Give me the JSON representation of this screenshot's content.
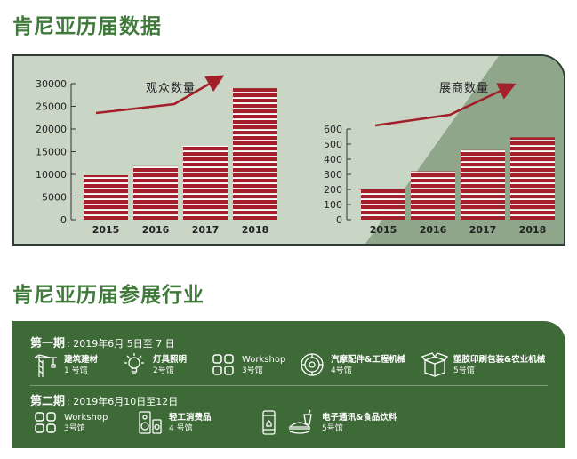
{
  "titles": {
    "history": "肯尼亚历届数据",
    "industries": "肯尼亚历届参展行业"
  },
  "chart_data": [
    {
      "type": "bar",
      "title": "观众数量",
      "categories": [
        "2015",
        "2016",
        "2017",
        "2018"
      ],
      "values": [
        9800,
        11800,
        16300,
        29000
      ],
      "yticks": [
        0,
        5000,
        10000,
        15000,
        20000,
        25000,
        30000
      ],
      "ylim": [
        0,
        30000
      ],
      "bar_color": "#a31f2a",
      "trend_arrow": true
    },
    {
      "type": "bar",
      "title": "展商数量",
      "categories": [
        "2015",
        "2016",
        "2017",
        "2018"
      ],
      "values": [
        205,
        320,
        460,
        545
      ],
      "yticks": [
        0,
        100,
        200,
        300,
        400,
        500,
        600
      ],
      "ylim": [
        0,
        600
      ],
      "bar_color": "#a31f2a",
      "trend_arrow": true
    }
  ],
  "phases": [
    {
      "label": "第一期",
      "date": ": 2019年6月 5日至 7 日",
      "items": [
        {
          "icon": "crane-icon",
          "name": "建筑建材",
          "hall": "1 号馆"
        },
        {
          "icon": "lightbulb-icon",
          "name": "灯具照明",
          "hall": "2号馆"
        },
        {
          "icon": "grid-icon",
          "name": "Workshop",
          "hall": "3号馆"
        },
        {
          "icon": "gear-icon",
          "name": "汽摩配件&工程机械",
          "hall": "4号馆"
        },
        {
          "icon": "box-icon",
          "name": "塑胶印刷包装&农业机械",
          "hall": "5号馆"
        }
      ]
    },
    {
      "label": "第二期",
      "date": ": 2019年6月10日至12日",
      "items": [
        {
          "icon": "grid-icon",
          "name": "Workshop",
          "hall": "3号馆"
        },
        {
          "icon": "speaker-icon",
          "name": "轻工消费品",
          "hall": "4 号馆"
        },
        {
          "icon": "phone-food-icon",
          "name": "电子通讯&食品饮料",
          "hall": "5号馆"
        }
      ]
    }
  ],
  "colors": {
    "title_green": "#3f7a3b",
    "panel_bg": "#c9d6c6",
    "panel_dark": "#8fa68b",
    "industry_bg": "#3e6a37",
    "bar": "#a31f2a"
  }
}
